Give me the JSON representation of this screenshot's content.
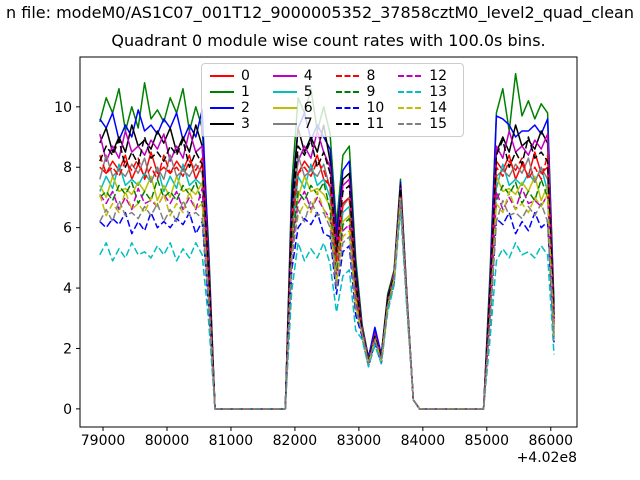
{
  "header": {
    "file_line": "n file: modeM0/AS1C07_001T12_9000005352_37858cztM0_level2_quad_clean"
  },
  "chart_data": {
    "type": "line",
    "title": "Quadrant 0 module wise count rates with 100.0s bins.",
    "xlabel": "",
    "ylabel": "",
    "x_offset_label": "+4.02e8",
    "legend_position": "upper center, 4 columns",
    "grid": false,
    "xlim": [
      78640,
      86410
    ],
    "ylim": [
      -0.6,
      11.65
    ],
    "xticks": [
      79000,
      80000,
      81000,
      82000,
      83000,
      84000,
      85000,
      86000
    ],
    "yticks": [
      0,
      2,
      4,
      6,
      8,
      10
    ],
    "x_start": 78950,
    "x_step": 100,
    "series": [
      {
        "name": "0",
        "color": "#ff0000",
        "linestyle": "solid",
        "values": [
          8.0,
          7.8,
          8.2,
          7.9,
          8.4,
          7.6,
          8.1,
          7.7,
          8.5,
          7.8,
          8.0,
          7.8,
          8.2,
          7.9,
          8.4,
          7.6,
          8.1,
          4.4,
          0,
          0,
          0,
          0,
          0,
          0,
          0,
          0,
          0,
          0,
          0,
          0,
          6.0,
          7.8,
          8.2,
          7.9,
          8.4,
          7.6,
          7.4,
          5.0,
          6.8,
          7.0,
          4.0,
          2.6,
          1.6,
          2.4,
          1.7,
          3.6,
          4.4,
          7.2,
          3.6,
          0.3,
          0,
          0,
          0,
          0,
          0,
          0,
          0,
          0,
          0,
          0,
          0,
          3.6,
          8.2,
          7.9,
          8.4,
          7.6,
          8.1,
          7.7,
          8.5,
          7.8,
          8.0,
          2.8
        ]
      },
      {
        "name": "1",
        "color": "#008000",
        "linestyle": "solid",
        "values": [
          9.5,
          10.3,
          9.8,
          10.6,
          9.2,
          10.0,
          9.3,
          10.8,
          9.6,
          9.9,
          9.5,
          10.3,
          9.8,
          10.6,
          9.2,
          10.0,
          9.3,
          5.4,
          0,
          0,
          0,
          0,
          0,
          0,
          0,
          0,
          0,
          0,
          0,
          0,
          7.4,
          10.3,
          9.8,
          10.6,
          9.2,
          10.0,
          9.1,
          6.1,
          8.4,
          8.7,
          5.0,
          2.8,
          1.7,
          2.6,
          1.8,
          3.8,
          4.6,
          7.6,
          3.8,
          0.3,
          0,
          0,
          0,
          0,
          0,
          0,
          0,
          0,
          0,
          0,
          0,
          4.5,
          9.8,
          10.6,
          9.2,
          11.1,
          9.7,
          10.2,
          9.6,
          10.1,
          9.8,
          3.5
        ]
      },
      {
        "name": "2",
        "color": "#0000ff",
        "linestyle": "solid",
        "values": [
          9.6,
          9.3,
          9.8,
          8.9,
          9.4,
          9.0,
          9.9,
          9.2,
          9.4,
          9.1,
          9.6,
          9.3,
          9.8,
          8.9,
          9.4,
          9.0,
          9.9,
          5.1,
          0,
          0,
          0,
          0,
          0,
          0,
          0,
          0,
          0,
          0,
          0,
          0,
          7.0,
          9.3,
          9.8,
          8.9,
          9.4,
          9.0,
          8.6,
          5.8,
          7.9,
          8.2,
          4.7,
          2.7,
          1.7,
          2.7,
          1.8,
          3.7,
          4.5,
          7.5,
          3.7,
          0.3,
          0,
          0,
          0,
          0,
          0,
          0,
          0,
          0,
          0,
          0,
          0,
          4.2,
          9.7,
          9.6,
          9.4,
          9.0,
          9.2,
          9.2,
          9.4,
          9.1,
          9.6,
          3.3
        ]
      },
      {
        "name": "3",
        "color": "#000000",
        "linestyle": "solid",
        "values": [
          8.8,
          9.3,
          8.5,
          9.0,
          8.5,
          9.4,
          8.7,
          8.9,
          8.6,
          9.2,
          8.8,
          9.3,
          8.5,
          9.0,
          8.5,
          9.4,
          8.7,
          4.9,
          0,
          0,
          0,
          0,
          0,
          0,
          0,
          0,
          0,
          0,
          0,
          0,
          6.7,
          9.3,
          8.5,
          9.0,
          8.5,
          9.4,
          8.2,
          5.5,
          7.6,
          7.8,
          4.5,
          2.7,
          1.6,
          2.5,
          1.7,
          3.7,
          4.5,
          7.4,
          3.7,
          0.3,
          0,
          0,
          0,
          0,
          0,
          0,
          0,
          0,
          0,
          0,
          0,
          4.0,
          8.5,
          9.0,
          8.5,
          9.4,
          8.7,
          8.9,
          8.6,
          9.2,
          8.8,
          3.1
        ]
      },
      {
        "name": "4",
        "color": "#bf00bf",
        "linestyle": "solid",
        "values": [
          9.1,
          8.2,
          8.7,
          8.3,
          9.2,
          8.5,
          8.7,
          8.4,
          8.9,
          8.6,
          9.1,
          8.2,
          8.7,
          8.3,
          9.2,
          8.5,
          8.7,
          4.8,
          0,
          0,
          0,
          0,
          0,
          0,
          0,
          0,
          0,
          0,
          0,
          0,
          6.5,
          8.2,
          8.7,
          8.3,
          9.2,
          8.5,
          8.0,
          5.4,
          7.4,
          7.6,
          4.3,
          2.7,
          1.6,
          2.5,
          1.7,
          3.6,
          4.5,
          7.3,
          3.7,
          0.3,
          0,
          0,
          0,
          0,
          0,
          0,
          0,
          0,
          0,
          0,
          0,
          3.9,
          8.7,
          8.3,
          9.2,
          8.5,
          8.7,
          8.4,
          8.9,
          8.6,
          9.1,
          3.0
        ]
      },
      {
        "name": "5",
        "color": "#00bfbf",
        "linestyle": "solid",
        "values": [
          7.2,
          7.7,
          7.3,
          8.1,
          7.4,
          7.6,
          7.4,
          7.8,
          7.5,
          8.0,
          7.2,
          7.7,
          7.3,
          8.1,
          7.4,
          7.6,
          7.4,
          4.2,
          0,
          0,
          0,
          0,
          0,
          0,
          0,
          0,
          0,
          0,
          0,
          0,
          5.7,
          7.7,
          7.3,
          8.1,
          7.4,
          7.6,
          7.0,
          4.7,
          6.5,
          6.7,
          3.8,
          2.6,
          1.5,
          2.4,
          1.6,
          3.5,
          4.4,
          7.1,
          3.6,
          0.3,
          0,
          0,
          0,
          0,
          0,
          0,
          0,
          0,
          0,
          0,
          0,
          3.4,
          7.3,
          8.1,
          7.4,
          7.6,
          7.4,
          7.8,
          7.5,
          8.0,
          7.2,
          2.7
        ]
      },
      {
        "name": "6",
        "color": "#bfbf00",
        "linestyle": "solid",
        "values": [
          7.4,
          7.0,
          7.7,
          7.2,
          7.3,
          7.1,
          7.5,
          7.2,
          7.7,
          6.9,
          7.4,
          7.0,
          7.7,
          7.2,
          7.3,
          7.1,
          7.5,
          4.0,
          0,
          0,
          0,
          0,
          0,
          0,
          0,
          0,
          0,
          0,
          0,
          0,
          5.5,
          7.0,
          7.7,
          7.2,
          7.3,
          7.1,
          6.7,
          4.5,
          6.2,
          6.4,
          3.7,
          2.5,
          1.5,
          2.3,
          1.6,
          3.5,
          4.3,
          7.1,
          3.5,
          0.3,
          0,
          0,
          0,
          0,
          0,
          0,
          0,
          0,
          0,
          0,
          0,
          3.3,
          7.7,
          7.2,
          7.3,
          7.1,
          7.5,
          7.2,
          7.7,
          6.9,
          7.4,
          2.6
        ]
      },
      {
        "name": "7",
        "color": "#808080",
        "linestyle": "solid",
        "values": [
          7.6,
          8.4,
          7.7,
          7.9,
          7.7,
          8.1,
          7.8,
          8.3,
          7.5,
          8.0,
          7.6,
          8.4,
          7.7,
          7.9,
          7.7,
          8.1,
          7.8,
          4.3,
          0,
          0,
          0,
          0,
          0,
          0,
          0,
          0,
          0,
          0,
          0,
          0,
          5.9,
          8.4,
          7.7,
          7.9,
          7.7,
          8.1,
          7.3,
          4.9,
          6.7,
          7.0,
          4.0,
          2.6,
          1.6,
          2.4,
          1.7,
          3.5,
          4.4,
          7.2,
          3.6,
          0.3,
          0,
          0,
          0,
          0,
          0,
          0,
          0,
          0,
          0,
          0,
          0,
          3.6,
          7.7,
          7.9,
          7.7,
          8.1,
          7.8,
          8.3,
          7.5,
          8.0,
          7.6,
          2.8
        ]
      },
      {
        "name": "8",
        "color": "#ff0000",
        "linestyle": "dashed",
        "values": [
          8.4,
          7.8,
          8.0,
          7.7,
          8.2,
          7.9,
          8.3,
          7.6,
          8.0,
          7.6,
          8.4,
          7.8,
          8.0,
          7.7,
          8.2,
          7.9,
          8.3,
          4.4,
          0,
          0,
          0,
          0,
          0,
          0,
          0,
          0,
          0,
          0,
          0,
          0,
          6.0,
          7.8,
          8.0,
          7.7,
          8.2,
          7.9,
          7.3,
          4.9,
          6.8,
          7.0,
          4.0,
          2.6,
          1.6,
          2.4,
          1.7,
          3.6,
          4.4,
          7.2,
          3.6,
          0.3,
          0,
          0,
          0,
          0,
          0,
          0,
          0,
          0,
          0,
          0,
          0,
          3.6,
          8.0,
          7.7,
          8.2,
          7.9,
          8.3,
          7.6,
          8.0,
          7.6,
          8.4,
          2.8
        ]
      },
      {
        "name": "9",
        "color": "#008000",
        "linestyle": "dashed",
        "values": [
          7.0,
          7.2,
          6.9,
          7.4,
          7.1,
          7.5,
          6.8,
          7.2,
          6.9,
          7.6,
          7.0,
          7.2,
          6.9,
          7.4,
          7.1,
          7.5,
          6.8,
          3.9,
          0,
          0,
          0,
          0,
          0,
          0,
          0,
          0,
          0,
          0,
          0,
          0,
          5.4,
          7.2,
          6.9,
          7.4,
          7.1,
          7.5,
          6.6,
          4.4,
          6.1,
          6.3,
          3.6,
          2.5,
          1.5,
          2.3,
          1.6,
          3.5,
          4.3,
          7.0,
          3.5,
          0.3,
          0,
          0,
          0,
          0,
          0,
          0,
          0,
          0,
          0,
          0,
          0,
          3.2,
          6.9,
          7.4,
          7.1,
          7.5,
          6.8,
          7.2,
          6.9,
          7.6,
          7.0,
          2.5
        ]
      },
      {
        "name": "10",
        "color": "#0000ff",
        "linestyle": "dashed",
        "values": [
          6.2,
          6.0,
          6.3,
          6.1,
          6.5,
          5.8,
          6.2,
          5.9,
          6.5,
          6.0,
          6.2,
          6.0,
          6.3,
          6.1,
          6.5,
          5.8,
          6.2,
          3.4,
          0,
          0,
          0,
          0,
          0,
          0,
          0,
          0,
          0,
          0,
          0,
          0,
          4.6,
          6.0,
          6.3,
          6.1,
          6.5,
          5.8,
          5.7,
          3.8,
          5.2,
          5.4,
          3.1,
          2.4,
          1.4,
          2.2,
          1.5,
          3.3,
          4.2,
          6.8,
          3.4,
          0.3,
          0,
          0,
          0,
          0,
          0,
          0,
          0,
          0,
          0,
          0,
          0,
          2.8,
          6.3,
          6.1,
          6.5,
          5.8,
          6.2,
          5.9,
          6.5,
          6.0,
          6.2,
          2.2
        ]
      },
      {
        "name": "11",
        "color": "#000000",
        "linestyle": "dashed",
        "values": [
          8.2,
          8.7,
          8.4,
          8.9,
          8.0,
          8.5,
          8.1,
          9.0,
          8.3,
          8.5,
          8.2,
          8.7,
          8.4,
          8.9,
          8.0,
          8.5,
          8.1,
          4.6,
          0,
          0,
          0,
          0,
          0,
          0,
          0,
          0,
          0,
          0,
          0,
          0,
          6.3,
          8.7,
          8.4,
          8.9,
          8.0,
          8.5,
          7.8,
          5.2,
          7.2,
          7.4,
          4.2,
          2.6,
          1.6,
          2.4,
          1.7,
          3.6,
          4.4,
          7.3,
          3.6,
          0.3,
          0,
          0,
          0,
          0,
          0,
          0,
          0,
          0,
          0,
          0,
          0,
          3.8,
          8.4,
          8.9,
          8.0,
          8.5,
          8.1,
          9.0,
          8.3,
          8.5,
          8.2,
          3.0
        ]
      },
      {
        "name": "12",
        "color": "#bf00bf",
        "linestyle": "dashed",
        "values": [
          7.1,
          6.8,
          7.2,
          6.6,
          7.0,
          6.6,
          7.3,
          6.8,
          6.9,
          6.7,
          7.1,
          6.8,
          7.2,
          6.6,
          7.0,
          6.6,
          7.3,
          3.8,
          0,
          0,
          0,
          0,
          0,
          0,
          0,
          0,
          0,
          0,
          0,
          0,
          5.2,
          6.8,
          7.2,
          6.6,
          7.0,
          6.6,
          6.3,
          4.3,
          5.9,
          6.1,
          3.5,
          2.5,
          1.5,
          2.3,
          1.6,
          3.4,
          4.3,
          7.0,
          3.5,
          0.3,
          0,
          0,
          0,
          0,
          0,
          0,
          0,
          0,
          0,
          0,
          0,
          3.1,
          7.2,
          6.6,
          7.0,
          6.6,
          7.3,
          6.8,
          6.9,
          6.7,
          7.1,
          2.4
        ]
      },
      {
        "name": "13",
        "color": "#00bfbf",
        "linestyle": "dashed",
        "values": [
          5.1,
          5.5,
          4.9,
          5.3,
          5.0,
          5.5,
          5.1,
          5.2,
          5.0,
          5.4,
          5.1,
          5.5,
          4.9,
          5.3,
          5.0,
          5.5,
          5.1,
          2.9,
          0,
          0,
          0,
          0,
          0,
          0,
          0,
          0,
          0,
          0,
          0,
          0,
          3.9,
          5.5,
          4.9,
          5.3,
          5.0,
          5.5,
          4.8,
          3.2,
          4.4,
          4.6,
          2.6,
          2.3,
          1.4,
          2.1,
          1.5,
          3.2,
          4.1,
          6.6,
          3.3,
          0.3,
          0,
          0,
          0,
          0,
          0,
          0,
          0,
          0,
          0,
          0,
          0,
          2.3,
          4.9,
          5.3,
          5.0,
          5.5,
          5.1,
          5.2,
          5.0,
          5.4,
          5.1,
          1.8
        ]
      },
      {
        "name": "14",
        "color": "#bfbf00",
        "linestyle": "dashed",
        "values": [
          7.1,
          6.4,
          6.8,
          6.5,
          7.2,
          6.6,
          6.8,
          6.5,
          7.0,
          6.7,
          7.1,
          6.4,
          6.8,
          6.5,
          7.2,
          6.6,
          6.8,
          3.7,
          0,
          0,
          0,
          0,
          0,
          0,
          0,
          0,
          0,
          0,
          0,
          0,
          5.1,
          6.4,
          6.8,
          6.5,
          7.2,
          6.6,
          6.2,
          4.2,
          5.7,
          5.9,
          3.4,
          2.5,
          1.5,
          2.3,
          1.6,
          3.4,
          4.3,
          7.0,
          3.5,
          0.3,
          0,
          0,
          0,
          0,
          0,
          0,
          0,
          0,
          0,
          0,
          0,
          3.0,
          6.8,
          6.5,
          7.2,
          6.6,
          6.8,
          6.5,
          7.0,
          6.7,
          7.1,
          2.4
        ]
      },
      {
        "name": "15",
        "color": "#808080",
        "linestyle": "dashed",
        "values": [
          6.2,
          6.6,
          6.2,
          6.9,
          6.4,
          6.5,
          6.3,
          6.7,
          6.4,
          6.8,
          6.2,
          6.6,
          6.2,
          6.9,
          6.4,
          6.5,
          6.3,
          3.6,
          0,
          0,
          0,
          0,
          0,
          0,
          0,
          0,
          0,
          0,
          0,
          0,
          4.9,
          6.6,
          6.2,
          6.9,
          6.4,
          6.5,
          6.0,
          4.0,
          5.5,
          5.7,
          3.3,
          2.5,
          1.5,
          2.3,
          1.6,
          3.4,
          4.3,
          6.9,
          3.5,
          0.3,
          0,
          0,
          0,
          0,
          0,
          0,
          0,
          0,
          0,
          0,
          0,
          2.9,
          6.2,
          6.9,
          6.4,
          6.5,
          6.3,
          6.7,
          6.4,
          6.8,
          6.2,
          2.3
        ]
      }
    ]
  }
}
